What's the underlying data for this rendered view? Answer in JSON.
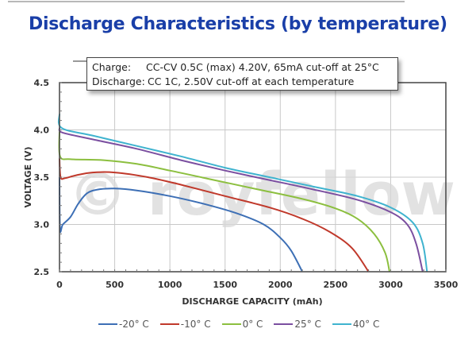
{
  "header": {
    "title": "Discharge Characteristics (by temperature)"
  },
  "note": {
    "rows": [
      {
        "key": "Charge:",
        "value": "CC-CV 0.5C (max) 4.20V, 65mA cut-off at 25°C"
      },
      {
        "key": "Discharge:",
        "value": "CC 1C, 2.50V cut-off at each temperature"
      }
    ]
  },
  "watermark": "© royfellow",
  "chart_data": {
    "type": "line",
    "title": "Discharge Characteristics (by temperature)",
    "xlabel": "DISCHARGE CAPACITY (mAh)",
    "ylabel": "VOLTAGE (V)",
    "xlim": [
      0,
      3500
    ],
    "ylim": [
      2.5,
      4.5
    ],
    "xticks": [
      0,
      500,
      1000,
      1500,
      2000,
      2500,
      3000,
      3500
    ],
    "yticks": [
      2.5,
      3.0,
      3.5,
      4.0,
      4.5
    ],
    "xtick_labels": [
      "0",
      "500",
      "1000",
      "1500",
      "2000",
      "2500",
      "3000",
      "3500"
    ],
    "ytick_labels": [
      "2.5",
      "3.0",
      "3.5",
      "4.0",
      "4.5"
    ],
    "grid": true,
    "legend_position": "bottom",
    "series": [
      {
        "name": "-20° C",
        "color": "#3d6fb5",
        "points": [
          [
            0,
            3.5
          ],
          [
            5,
            2.95
          ],
          [
            30,
            3.0
          ],
          [
            100,
            3.08
          ],
          [
            170,
            3.22
          ],
          [
            250,
            3.33
          ],
          [
            350,
            3.37
          ],
          [
            500,
            3.38
          ],
          [
            700,
            3.36
          ],
          [
            1000,
            3.3
          ],
          [
            1300,
            3.22
          ],
          [
            1600,
            3.12
          ],
          [
            1850,
            3.0
          ],
          [
            2000,
            2.86
          ],
          [
            2100,
            2.72
          ],
          [
            2200,
            2.5
          ]
        ]
      },
      {
        "name": "-10° C",
        "color": "#c0392b",
        "points": [
          [
            0,
            3.7
          ],
          [
            10,
            3.5
          ],
          [
            50,
            3.49
          ],
          [
            150,
            3.52
          ],
          [
            300,
            3.55
          ],
          [
            500,
            3.55
          ],
          [
            800,
            3.5
          ],
          [
            1100,
            3.42
          ],
          [
            1500,
            3.3
          ],
          [
            1900,
            3.18
          ],
          [
            2200,
            3.06
          ],
          [
            2450,
            2.92
          ],
          [
            2650,
            2.75
          ],
          [
            2800,
            2.5
          ]
        ]
      },
      {
        "name": "0° C",
        "color": "#8cbf3f",
        "points": [
          [
            0,
            3.98
          ],
          [
            5,
            3.72
          ],
          [
            100,
            3.69
          ],
          [
            400,
            3.68
          ],
          [
            700,
            3.64
          ],
          [
            1000,
            3.57
          ],
          [
            1400,
            3.47
          ],
          [
            1800,
            3.37
          ],
          [
            2200,
            3.27
          ],
          [
            2500,
            3.17
          ],
          [
            2700,
            3.06
          ],
          [
            2850,
            2.9
          ],
          [
            2950,
            2.7
          ],
          [
            2990,
            2.5
          ]
        ]
      },
      {
        "name": "25° C",
        "color": "#7b4fa0",
        "points": [
          [
            0,
            4.02
          ],
          [
            30,
            3.97
          ],
          [
            300,
            3.9
          ],
          [
            700,
            3.8
          ],
          [
            1100,
            3.68
          ],
          [
            1500,
            3.57
          ],
          [
            1900,
            3.47
          ],
          [
            2300,
            3.37
          ],
          [
            2700,
            3.26
          ],
          [
            3000,
            3.13
          ],
          [
            3150,
            3.0
          ],
          [
            3230,
            2.8
          ],
          [
            3290,
            2.5
          ]
        ]
      },
      {
        "name": "40° C",
        "color": "#3fb3cf",
        "points": [
          [
            0,
            4.17
          ],
          [
            20,
            4.02
          ],
          [
            300,
            3.94
          ],
          [
            700,
            3.83
          ],
          [
            1100,
            3.72
          ],
          [
            1500,
            3.6
          ],
          [
            1900,
            3.5
          ],
          [
            2300,
            3.4
          ],
          [
            2700,
            3.3
          ],
          [
            3000,
            3.18
          ],
          [
            3200,
            3.02
          ],
          [
            3290,
            2.8
          ],
          [
            3330,
            2.5
          ]
        ]
      }
    ]
  },
  "legend": {
    "items": [
      {
        "label": "-20° C",
        "color": "#3d6fb5"
      },
      {
        "label": "-10° C",
        "color": "#c0392b"
      },
      {
        "label": "0° C",
        "color": "#8cbf3f"
      },
      {
        "label": "25° C",
        "color": "#7b4fa0"
      },
      {
        "label": "40° C",
        "color": "#3fb3cf"
      }
    ]
  }
}
